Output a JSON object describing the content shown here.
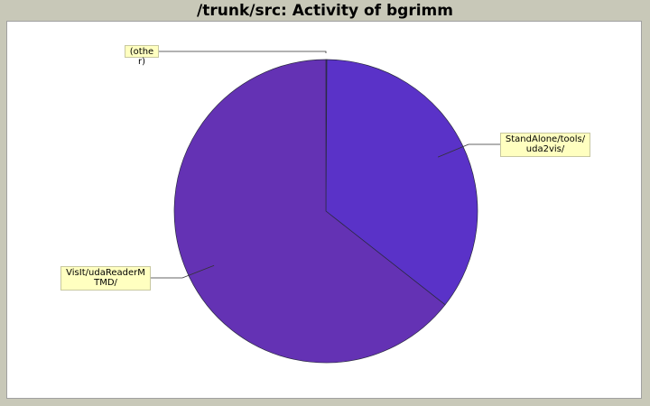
{
  "chart_data": {
    "type": "pie",
    "title": "/trunk/src: Activity of bgrimm",
    "slices": [
      {
        "label": "(other)",
        "value": 0.1,
        "color": "#5a32c8"
      },
      {
        "label": "StandAlone/tools/uda2vis/",
        "value": 35.5,
        "color": "#5a32c8"
      },
      {
        "label": "VisIt/udaReaderMTMD/",
        "value": 64.4,
        "color": "#6432b4"
      }
    ]
  }
}
